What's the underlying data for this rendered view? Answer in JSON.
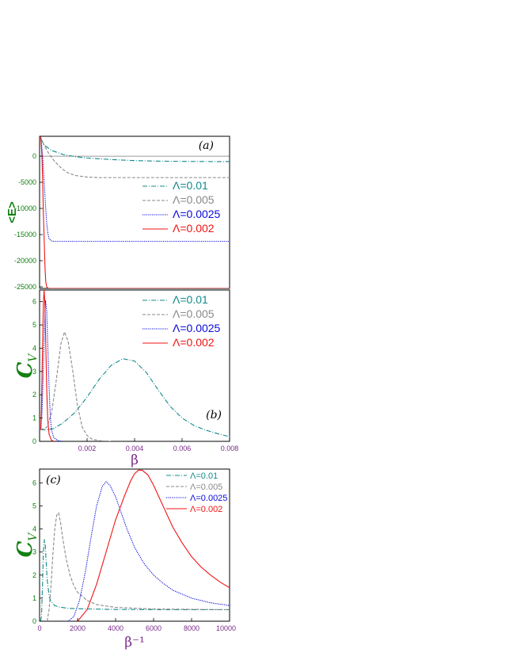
{
  "colors": {
    "teal": "#138a8a",
    "gray": "#8a8a8a",
    "blue": "#0a0adc",
    "red": "#f01414",
    "green_label": "#118011",
    "purple_label": "#7a2a8a",
    "axis": "#000000"
  },
  "chart_data": [
    {
      "id": "a",
      "type": "line",
      "panel_label": "(a)",
      "ylabel": "<E>",
      "xlabel": "",
      "xlim": [
        0,
        0.008
      ],
      "ylim": [
        -25300,
        3800
      ],
      "yticks": [
        0,
        -5000,
        -10000,
        -15000,
        -20000,
        -25000
      ],
      "ytick_labels": [
        "0",
        "-5000",
        "-10000",
        "-15000",
        "-20000",
        "-25000"
      ],
      "legend": [
        "Λ=0.01",
        "Λ=0.005",
        "Λ=0.0025",
        "Λ=0.002"
      ],
      "legend_position": "right",
      "series": [
        {
          "name": "Λ=0.01",
          "style": "dashdot",
          "color": "teal",
          "x": [
            5e-05,
            0.0002,
            0.0005,
            0.001,
            0.0015,
            0.002,
            0.003,
            0.004,
            0.005,
            0.006,
            0.007,
            0.008
          ],
          "y": [
            3400,
            2100,
            1100,
            300,
            -100,
            -350,
            -650,
            -850,
            -950,
            -1000,
            -1030,
            -1040
          ]
        },
        {
          "name": "Λ=0.005",
          "style": "dashed",
          "color": "gray",
          "x": [
            5e-05,
            0.0002,
            0.0004,
            0.0006,
            0.0008,
            0.001,
            0.0012,
            0.0015,
            0.002,
            0.0025,
            0.003,
            0.004,
            0.005,
            0.006,
            0.007,
            0.008
          ],
          "y": [
            3400,
            2000,
            400,
            -800,
            -1800,
            -2600,
            -3200,
            -3700,
            -4000,
            -4100,
            -4100,
            -4100,
            -4100,
            -4100,
            -4100,
            -4100
          ]
        },
        {
          "name": "Λ=0.0025",
          "style": "dotted",
          "color": "blue",
          "x": [
            5e-05,
            0.0001,
            0.00015,
            0.0002,
            0.00025,
            0.0003,
            0.00035,
            0.0004,
            0.0005,
            0.0006,
            0.0008,
            0.001,
            0.002,
            0.004,
            0.006,
            0.008
          ],
          "y": [
            3600,
            1500,
            -1500,
            -5500,
            -9500,
            -12800,
            -14800,
            -15800,
            -16200,
            -16300,
            -16300,
            -16300,
            -16300,
            -16300,
            -16300,
            -16300
          ]
        },
        {
          "name": "Λ=0.002",
          "style": "solid",
          "color": "red",
          "x": [
            5e-05,
            0.0001,
            0.00013,
            0.00016,
            0.0002,
            0.00023,
            0.00026,
            0.0003,
            0.00035,
            0.0004,
            0.0006,
            0.001,
            0.004,
            0.008
          ],
          "y": [
            3700,
            0,
            -5000,
            -11000,
            -17000,
            -21500,
            -24000,
            -25000,
            -25250,
            -25300,
            -25300,
            -25300,
            -25300,
            -25300
          ]
        }
      ]
    },
    {
      "id": "b",
      "type": "line",
      "panel_label": "(b)",
      "ylabel": "C",
      "ylabel_sub": "V",
      "xlabel": "β",
      "xlim": [
        0,
        0.008
      ],
      "ylim": [
        0,
        6.5
      ],
      "yticks": [
        0,
        1,
        2,
        3,
        4,
        5,
        6
      ],
      "ytick_labels": [
        "0",
        "1",
        "2",
        "3",
        "4",
        "5",
        "6"
      ],
      "xticks": [
        0.002,
        0.004,
        0.006,
        0.008
      ],
      "xtick_labels": [
        "0.002",
        "0.004",
        "0.006",
        "0.008"
      ],
      "legend": [
        "Λ=0.01",
        "Λ=0.005",
        "Λ=0.0025",
        "Λ=0.002"
      ],
      "legend_position": "top-right",
      "series": [
        {
          "name": "Λ=0.01",
          "style": "dashdot",
          "color": "teal",
          "x": [
            5e-05,
            0.0003,
            0.0006,
            0.001,
            0.0015,
            0.002,
            0.0025,
            0.003,
            0.0035,
            0.004,
            0.0045,
            0.005,
            0.0055,
            0.006,
            0.0065,
            0.007,
            0.0075,
            0.008
          ],
          "y": [
            0.5,
            0.5,
            0.55,
            0.8,
            1.25,
            1.9,
            2.65,
            3.25,
            3.55,
            3.45,
            2.95,
            2.2,
            1.5,
            1.0,
            0.68,
            0.48,
            0.33,
            0.2
          ]
        },
        {
          "name": "Λ=0.005",
          "style": "dashed",
          "color": "gray",
          "x": [
            5e-05,
            0.0003,
            0.0005,
            0.0007,
            0.0009,
            0.00105,
            0.0012,
            0.0014,
            0.0016,
            0.0018,
            0.002,
            0.0022,
            0.0025,
            0.003
          ],
          "y": [
            0.5,
            0.6,
            1.2,
            2.6,
            4.2,
            4.7,
            4.3,
            3.0,
            1.5,
            0.6,
            0.25,
            0.1,
            0.03,
            0
          ]
        },
        {
          "name": "Λ=0.0025",
          "style": "dotted",
          "color": "blue",
          "x": [
            5e-05,
            0.0001,
            0.00015,
            0.0002,
            0.00025,
            0.0003,
            0.00035,
            0.0004,
            0.00045,
            0.0005,
            0.0006,
            0.0008,
            0.001
          ],
          "y": [
            0.5,
            1.2,
            2.8,
            4.8,
            6.05,
            5.6,
            4.0,
            2.3,
            1.1,
            0.5,
            0.15,
            0.02,
            0
          ]
        },
        {
          "name": "Λ=0.002",
          "style": "solid",
          "color": "red",
          "x": [
            5e-05,
            8e-05,
            0.00012,
            0.00016,
            0.00019,
            0.00022,
            0.00026,
            0.0003,
            0.00034,
            0.0004,
            0.0005,
            0.0006
          ],
          "y": [
            0.5,
            1.5,
            3.8,
            5.9,
            6.5,
            6.0,
            4.2,
            2.3,
            1.0,
            0.3,
            0.05,
            0
          ]
        }
      ]
    },
    {
      "id": "c",
      "type": "line",
      "panel_label": "(c)",
      "ylabel": "C",
      "ylabel_sub": "V",
      "xlabel": "β⁻¹",
      "xlim": [
        0,
        10000
      ],
      "ylim": [
        0,
        6.6
      ],
      "yticks": [
        0,
        1,
        2,
        3,
        4,
        5,
        6
      ],
      "ytick_labels": [
        "0",
        "1",
        "2",
        "3",
        "4",
        "5",
        "6"
      ],
      "xticks": [
        0,
        2000,
        4000,
        6000,
        8000,
        10000
      ],
      "xtick_labels": [
        "0",
        "2000",
        "4000",
        "6000",
        "8000",
        "10000"
      ],
      "legend": [
        "Λ=0.01",
        "Λ=0.005",
        "Λ=0.0025",
        "Λ=0.002"
      ],
      "legend_position": "top-right",
      "series": [
        {
          "name": "Λ=0.01",
          "style": "dashdot",
          "color": "teal",
          "x": [
            50,
            100,
            150,
            200,
            250,
            300,
            350,
            400,
            500,
            600,
            800,
            1000,
            1500,
            2000,
            4000,
            7000,
            10000
          ],
          "y": [
            0,
            0.2,
            1.5,
            3.0,
            3.55,
            3.3,
            2.5,
            1.8,
            1.1,
            0.85,
            0.68,
            0.62,
            0.56,
            0.54,
            0.51,
            0.5,
            0.5
          ]
        },
        {
          "name": "Λ=0.005",
          "style": "dashed",
          "color": "gray",
          "x": [
            400,
            500,
            600,
            700,
            800,
            900,
            1000,
            1100,
            1200,
            1400,
            1600,
            1800,
            2000,
            2500,
            3000,
            4000,
            6000,
            10000
          ],
          "y": [
            0,
            0.5,
            1.5,
            2.9,
            4.0,
            4.6,
            4.7,
            4.3,
            3.7,
            2.7,
            2.0,
            1.55,
            1.25,
            0.9,
            0.72,
            0.6,
            0.53,
            0.5
          ]
        },
        {
          "name": "Λ=0.0025",
          "style": "dotted",
          "color": "blue",
          "x": [
            1500,
            1800,
            2100,
            2400,
            2700,
            3000,
            3300,
            3500,
            3700,
            4000,
            4300,
            4600,
            5000,
            5500,
            6000,
            6500,
            7000,
            8000,
            9000,
            10000
          ],
          "y": [
            0,
            0.2,
            0.9,
            2.1,
            3.6,
            5.0,
            5.85,
            6.05,
            5.9,
            5.4,
            4.7,
            4.0,
            3.2,
            2.5,
            2.0,
            1.65,
            1.35,
            1.0,
            0.8,
            0.68
          ]
        },
        {
          "name": "Λ=0.002",
          "style": "solid",
          "color": "red",
          "x": [
            2000,
            2500,
            3000,
            3500,
            4000,
            4500,
            4800,
            5000,
            5200,
            5400,
            5700,
            6000,
            6500,
            7000,
            7500,
            8000,
            8500,
            9000,
            9500,
            10000
          ],
          "y": [
            0,
            0.5,
            1.6,
            3.0,
            4.4,
            5.5,
            6.1,
            6.4,
            6.55,
            6.55,
            6.35,
            5.9,
            5.0,
            4.1,
            3.4,
            2.8,
            2.35,
            2.0,
            1.7,
            1.45
          ]
        }
      ]
    }
  ]
}
